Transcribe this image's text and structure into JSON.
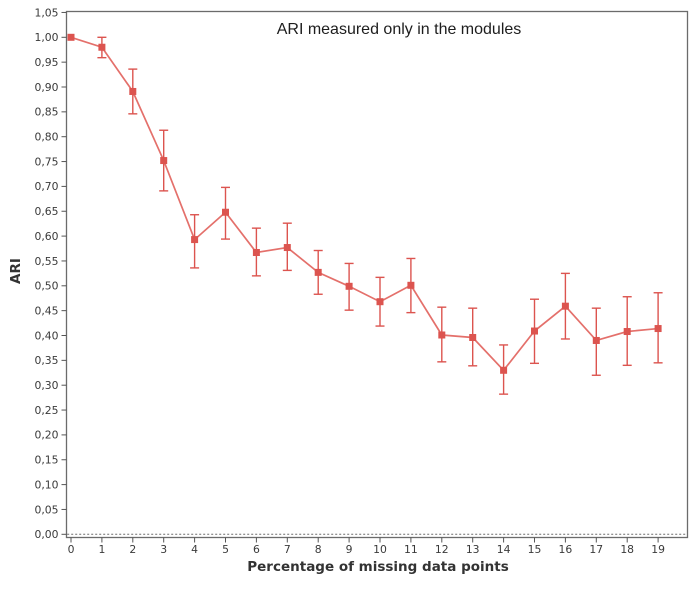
{
  "chart_data": {
    "type": "line",
    "title": "ARI measured only in the modules",
    "xlabel": "Percentage of missing data points",
    "ylabel": "ARI",
    "x": [
      0,
      1,
      2,
      3,
      4,
      5,
      6,
      7,
      8,
      9,
      10,
      11,
      12,
      13,
      14,
      15,
      16,
      17,
      18,
      19
    ],
    "series": [
      {
        "name": "ARI",
        "values": [
          1.0,
          0.98,
          0.891,
          0.752,
          0.593,
          0.648,
          0.567,
          0.577,
          0.527,
          0.499,
          0.468,
          0.501,
          0.401,
          0.396,
          0.33,
          0.409,
          0.459,
          0.39,
          0.408,
          0.414
        ],
        "err_low": [
          1.0,
          0.959,
          0.846,
          0.691,
          0.536,
          0.594,
          0.52,
          0.531,
          0.483,
          0.451,
          0.419,
          0.446,
          0.347,
          0.339,
          0.282,
          0.344,
          0.393,
          0.32,
          0.34,
          0.345
        ],
        "err_high": [
          1.0,
          1.0,
          0.936,
          0.813,
          0.643,
          0.698,
          0.616,
          0.626,
          0.571,
          0.545,
          0.517,
          0.555,
          0.457,
          0.455,
          0.381,
          0.473,
          0.525,
          0.455,
          0.478,
          0.486
        ]
      }
    ],
    "xlim": [
      -0.15,
      19.9
    ],
    "ylim": [
      0,
      1.05
    ],
    "y_tick_step": 0.05,
    "y_tick_labels": [
      "0,00",
      "0,05",
      "0,10",
      "0,15",
      "0,20",
      "0,25",
      "0,30",
      "0,35",
      "0,40",
      "0,45",
      "0,50",
      "0,55",
      "0,60",
      "0,65",
      "0,70",
      "0,75",
      "0,80",
      "0,85",
      "0,90",
      "0,95",
      "1,00",
      "1,05"
    ],
    "x_tick_labels": [
      "0",
      "1",
      "2",
      "3",
      "4",
      "5",
      "6",
      "7",
      "8",
      "9",
      "10",
      "11",
      "12",
      "13",
      "14",
      "15",
      "16",
      "17",
      "18",
      "19"
    ],
    "decimal_separator": ",",
    "grid": false,
    "legend": "none",
    "zero_baseline_style": "dashed",
    "marker": "square",
    "colors": {
      "series": "#dc544f",
      "line": "#e4706b",
      "frame": "#6b6b6b",
      "baseline": "#6e6e6e",
      "tick": "#555555",
      "tick_text": "#3a3a3a",
      "title_text": "#1d1d1d",
      "axis_label_text": "#333333"
    }
  }
}
